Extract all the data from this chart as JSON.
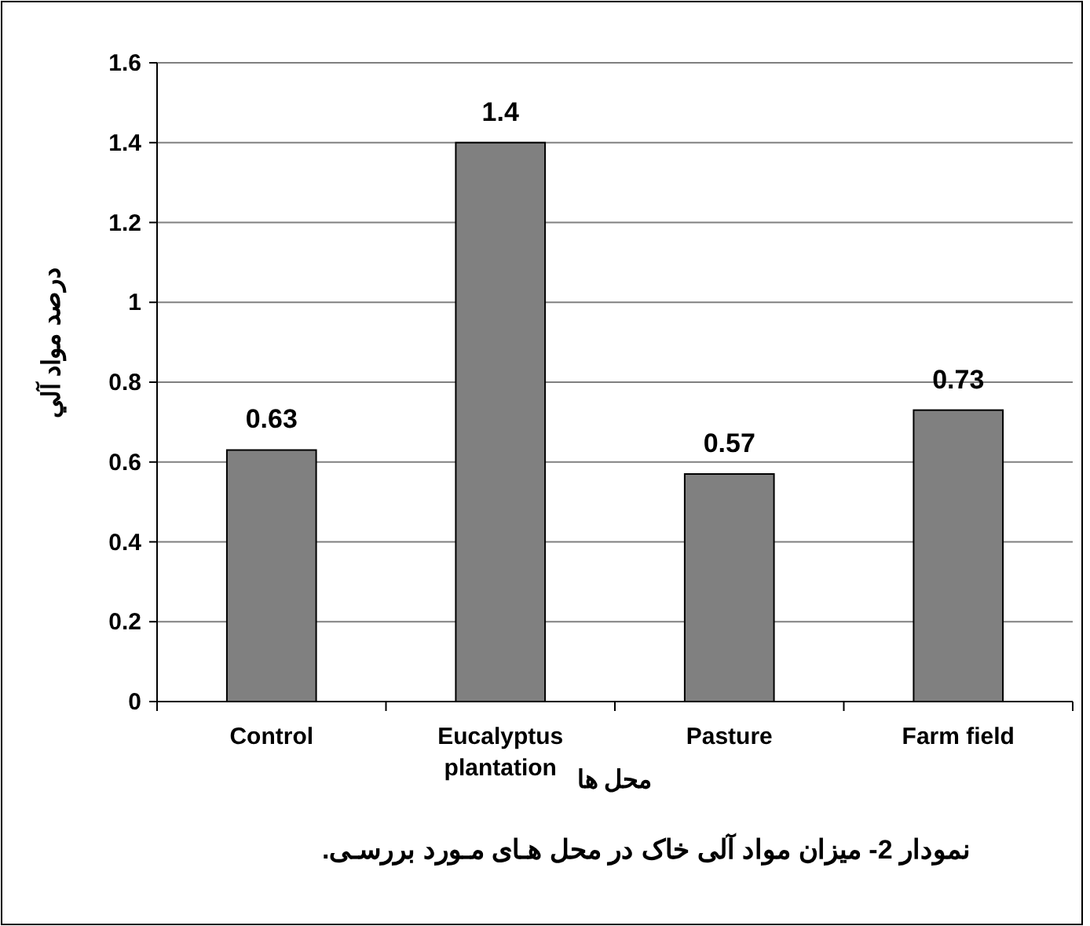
{
  "chart_data": {
    "type": "bar",
    "ylabel": "درصد مواد آلي",
    "xlabel": "محل ها",
    "categories": [
      "Control",
      "Eucalyptus plantation",
      "Pasture",
      "Farm field"
    ],
    "values": [
      0.63,
      1.4,
      0.57,
      0.73
    ],
    "color": "#808080",
    "data_labels": true,
    "ylim": [
      0,
      1.6
    ],
    "yticks": [
      0,
      0.2,
      0.4,
      0.6,
      0.8,
      1,
      1.2,
      1.4,
      1.6
    ],
    "grid": "y",
    "annotations": [
      "نمودار 2- میزان مواد آلی خاک در محل هـای مـورد بررسـی."
    ]
  }
}
